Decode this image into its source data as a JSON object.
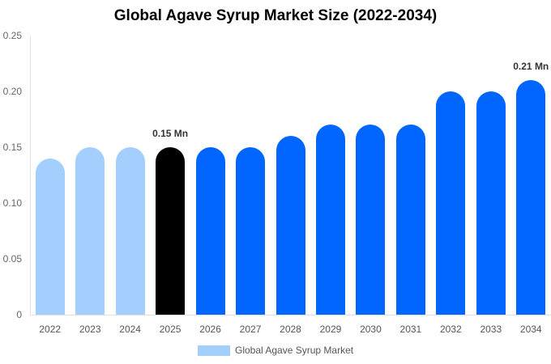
{
  "chart_data": {
    "type": "bar",
    "title": "Global Agave Syrup Market Size (2022-2034)",
    "xlabel": "",
    "ylabel": "",
    "ylim": [
      0,
      0.25
    ],
    "yticks": [
      "0",
      "0.05",
      "0.10",
      "0.15",
      "0.20",
      "0.25"
    ],
    "categories": [
      "2022",
      "2023",
      "2024",
      "2025",
      "2026",
      "2027",
      "2028",
      "2029",
      "2030",
      "2031",
      "2032",
      "2033",
      "2034"
    ],
    "series": [
      {
        "name": "Global Agave Syrup Market",
        "values": [
          0.14,
          0.15,
          0.15,
          0.15,
          0.15,
          0.15,
          0.16,
          0.17,
          0.17,
          0.17,
          0.2,
          0.2,
          0.21
        ],
        "colors": [
          "#a3cefe",
          "#a3cefe",
          "#a3cefe",
          "#000000",
          "#0066ff",
          "#0066ff",
          "#0066ff",
          "#0066ff",
          "#0066ff",
          "#0066ff",
          "#0066ff",
          "#0066ff",
          "#0066ff"
        ]
      }
    ],
    "annotations": [
      {
        "category": "2025",
        "text": "0.15 Mn"
      },
      {
        "category": "2034",
        "text": "0.21 Mn"
      }
    ],
    "grid": false,
    "legend_position": "bottom"
  },
  "title": "Global Agave Syrup Market Size (2022-2034)",
  "legend": {
    "label": "Global Agave Syrup Market",
    "color": "#a3cefe"
  }
}
